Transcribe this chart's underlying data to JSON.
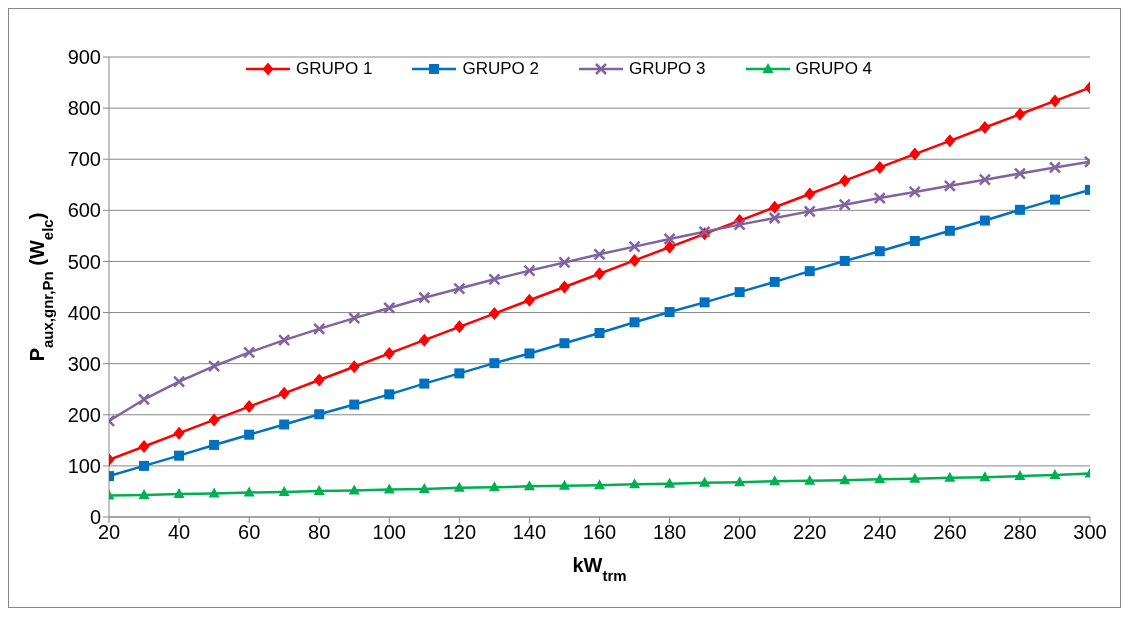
{
  "chart_data": {
    "type": "line",
    "xlabel": "kW$_{trm}$",
    "ylabel": "P$_{aux,gnr,Pn}$ (W$_{elc}$)",
    "x": [
      20,
      30,
      40,
      50,
      60,
      70,
      80,
      90,
      100,
      110,
      120,
      130,
      140,
      150,
      160,
      170,
      180,
      190,
      200,
      210,
      220,
      230,
      240,
      250,
      260,
      270,
      280,
      290,
      300
    ],
    "series": [
      {
        "name": "GRUPO 1",
        "color": "#ff0000",
        "marker": "diamond",
        "values": [
          112,
          138,
          164,
          190,
          216,
          242,
          268,
          294,
          320,
          346,
          372,
          398,
          424,
          450,
          476,
          502,
          528,
          554,
          580,
          606,
          632,
          658,
          684,
          710,
          736,
          762,
          788,
          814,
          840
        ]
      },
      {
        "name": "GRUPO 2",
        "color": "#0070c0",
        "marker": "square",
        "values": [
          80,
          100,
          120,
          141,
          161,
          181,
          201,
          220,
          240,
          261,
          281,
          301,
          320,
          340,
          360,
          381,
          401,
          420,
          440,
          460,
          481,
          501,
          520,
          540,
          560,
          580,
          601,
          621,
          640
        ]
      },
      {
        "name": "GRUPO 3",
        "color": "#8064a2",
        "marker": "cross",
        "values": [
          188,
          230,
          265,
          295,
          322,
          346,
          368,
          389,
          409,
          429,
          447,
          465,
          482,
          498,
          514,
          529,
          544,
          558,
          572,
          585,
          598,
          611,
          624,
          636,
          648,
          660,
          672,
          684,
          695
        ]
      },
      {
        "name": "GRUPO 4",
        "color": "#00b050",
        "marker": "triangle",
        "values": [
          42,
          43,
          45,
          46,
          48,
          49,
          51,
          52,
          54,
          55,
          57,
          58,
          60,
          61,
          62,
          64,
          65,
          67,
          68,
          70,
          71,
          72,
          74,
          75,
          77,
          78,
          80,
          82,
          85
        ]
      }
    ],
    "xlim": [
      20,
      300
    ],
    "xticks": [
      20,
      40,
      60,
      80,
      100,
      120,
      140,
      160,
      180,
      200,
      220,
      240,
      260,
      280,
      300
    ],
    "ylim": [
      0,
      900
    ],
    "yticks": [
      0,
      100,
      200,
      300,
      400,
      500,
      600,
      700,
      800,
      900
    ],
    "grid": "y",
    "legend": "top"
  }
}
